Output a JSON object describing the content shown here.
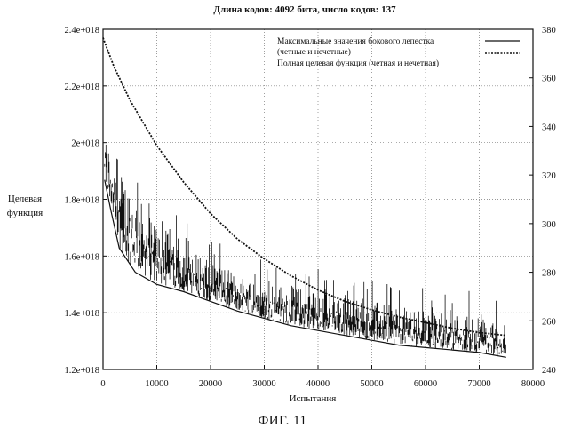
{
  "chart_data": {
    "type": "line",
    "title": "Длина кодов: 4092 бита, число кодов: 137",
    "xlabel": "Испытания",
    "ylabel_lines": [
      "Целевая",
      "функция"
    ],
    "xlim": [
      0,
      80000
    ],
    "ylim_left": [
      1.2e+18,
      2.4e+18
    ],
    "ylim_right": [
      240,
      380
    ],
    "x_ticks": [
      0,
      10000,
      20000,
      30000,
      40000,
      50000,
      60000,
      70000,
      80000
    ],
    "x_tick_labels": [
      "0",
      "10000",
      "20000",
      "30000",
      "40000",
      "50000",
      "60000",
      "70000",
      "80000"
    ],
    "y_left_ticks": [
      1.2e+18,
      1.4e+18,
      1.6e+18,
      1.8e+18,
      2e+18,
      2.2e+18,
      2.4e+18
    ],
    "y_left_tick_labels": [
      "1.2e+018",
      "1.4e+018",
      "1.6e+018",
      "1.8e+018",
      "2e+018",
      "2.2e+018",
      "2.4e+018"
    ],
    "y_right_ticks": [
      240,
      260,
      280,
      300,
      320,
      340,
      360,
      380
    ],
    "y_right_tick_labels": [
      "240",
      "260",
      "280",
      "300",
      "320",
      "340",
      "360",
      "380"
    ],
    "legend": [
      "Максимальные значения бокового лепестка (четные и нечетные)",
      "Полная целевая функция (четная и нечетная)"
    ],
    "legend_lines": [
      "Максимальные значения бокового лепестка",
      "(четные и нечетные)",
      "Полная целевая функция (четная и нечетная)"
    ],
    "series": [
      {
        "name": "Полная целевая функция (четная и нечетная)",
        "axis": "left",
        "style": "dashed",
        "x": [
          0,
          2000,
          5000,
          10000,
          15000,
          20000,
          25000,
          30000,
          35000,
          40000,
          45000,
          50000,
          55000,
          60000,
          65000,
          70000,
          75000
        ],
        "values": [
          2.37e+18,
          2.27e+18,
          2.15e+18,
          1.99e+18,
          1.86e+18,
          1.75e+18,
          1.66e+18,
          1.59e+18,
          1.53e+18,
          1.48e+18,
          1.44e+18,
          1.41e+18,
          1.385e+18,
          1.365e+18,
          1.345e+18,
          1.33e+18,
          1.32e+18
        ]
      },
      {
        "name": "Максимальные значения бокового лепестка (четные и нечетные)",
        "axis": "right",
        "style": "noisy",
        "x": [
          300,
          1500,
          3000,
          6000,
          10000,
          15000,
          20000,
          25000,
          30000,
          35000,
          40000,
          45000,
          50000,
          55000,
          60000,
          65000,
          70000,
          75000
        ],
        "lower": [
          318,
          305,
          290,
          280,
          275,
          272,
          268,
          264,
          261,
          258,
          256,
          254,
          252,
          250,
          249,
          248,
          247,
          245
        ],
        "upper": [
          336,
          330,
          322,
          312,
          300,
          292,
          285,
          279,
          276,
          274,
          272,
          270,
          268,
          266,
          264,
          263,
          262,
          258
        ]
      }
    ]
  },
  "caption": "ФИГ. 11"
}
